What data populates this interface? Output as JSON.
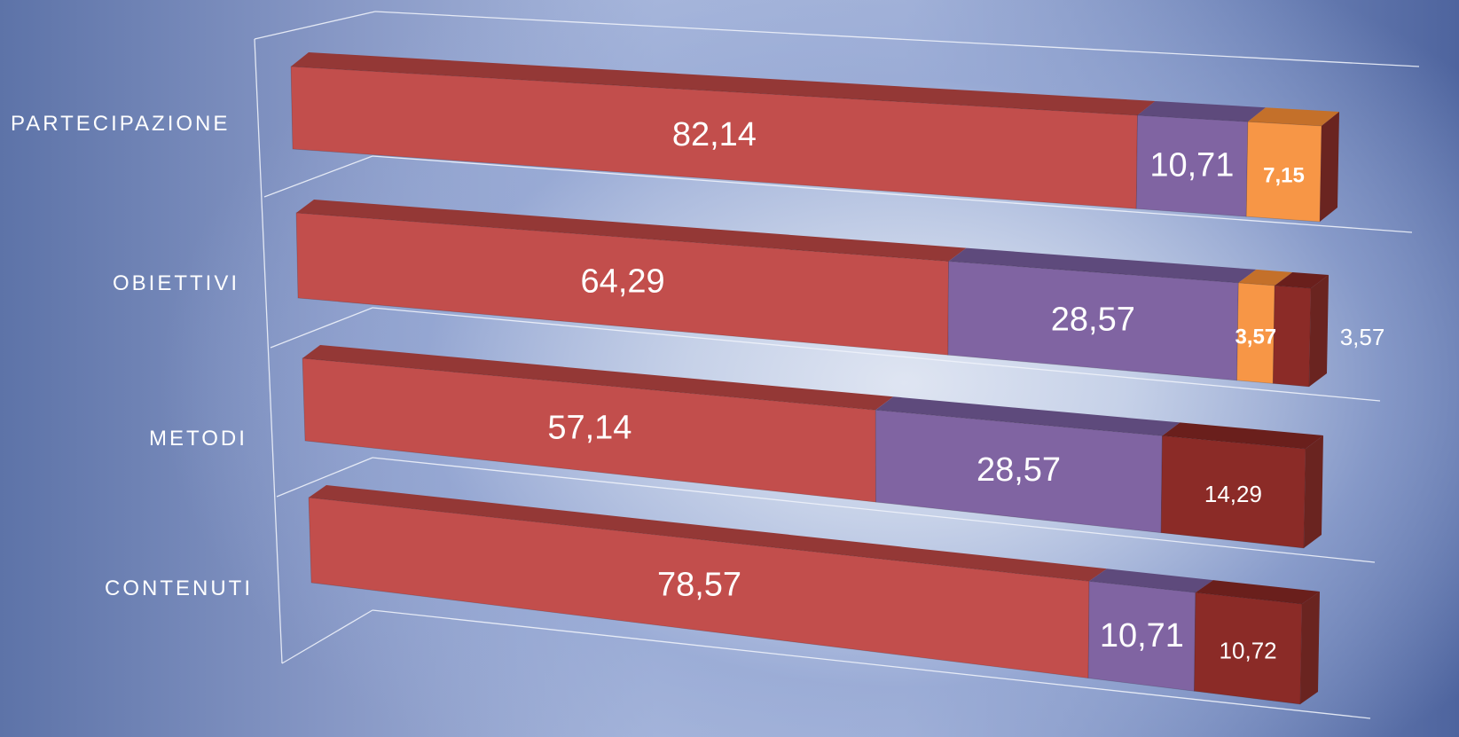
{
  "colors": {
    "series1_front": "#c24e4c",
    "series1_top": "#943836",
    "series2_front": "#8064a2",
    "series2_top": "#5e4a7c",
    "series3_front": "#f79646",
    "series3_top": "#c4702a",
    "series4_front": "#8b2b27",
    "series4_top": "#6a1f1c",
    "side": "#6a2420",
    "label": "#ffffff"
  },
  "chart_data": {
    "type": "bar",
    "orientation": "horizontal",
    "stacked": true,
    "percent_stacked": true,
    "style": "3d",
    "categories": [
      "PARTECIPAZIONE",
      "OBIETTIVI",
      "METODI",
      "CONTENUTI"
    ],
    "series": [
      {
        "values": [
          82.14,
          64.29,
          57.14,
          78.57
        ],
        "labels": [
          "82,14",
          "64,29",
          "57,14",
          "78,57"
        ]
      },
      {
        "values": [
          10.71,
          28.57,
          28.57,
          10.71
        ],
        "labels": [
          "10,71",
          "28,57",
          "28,57",
          "10,71"
        ]
      },
      {
        "values": [
          7.15,
          3.57,
          0,
          0
        ],
        "labels": [
          "7,15",
          "3,57",
          "",
          ""
        ]
      },
      {
        "values": [
          0,
          3.57,
          14.29,
          10.72
        ],
        "labels": [
          "",
          "3,57",
          "14,29",
          "10,72"
        ]
      }
    ],
    "xlim": [
      0,
      100
    ],
    "title": "",
    "xlabel": "",
    "ylabel": "",
    "legend": "none",
    "grid": false
  }
}
